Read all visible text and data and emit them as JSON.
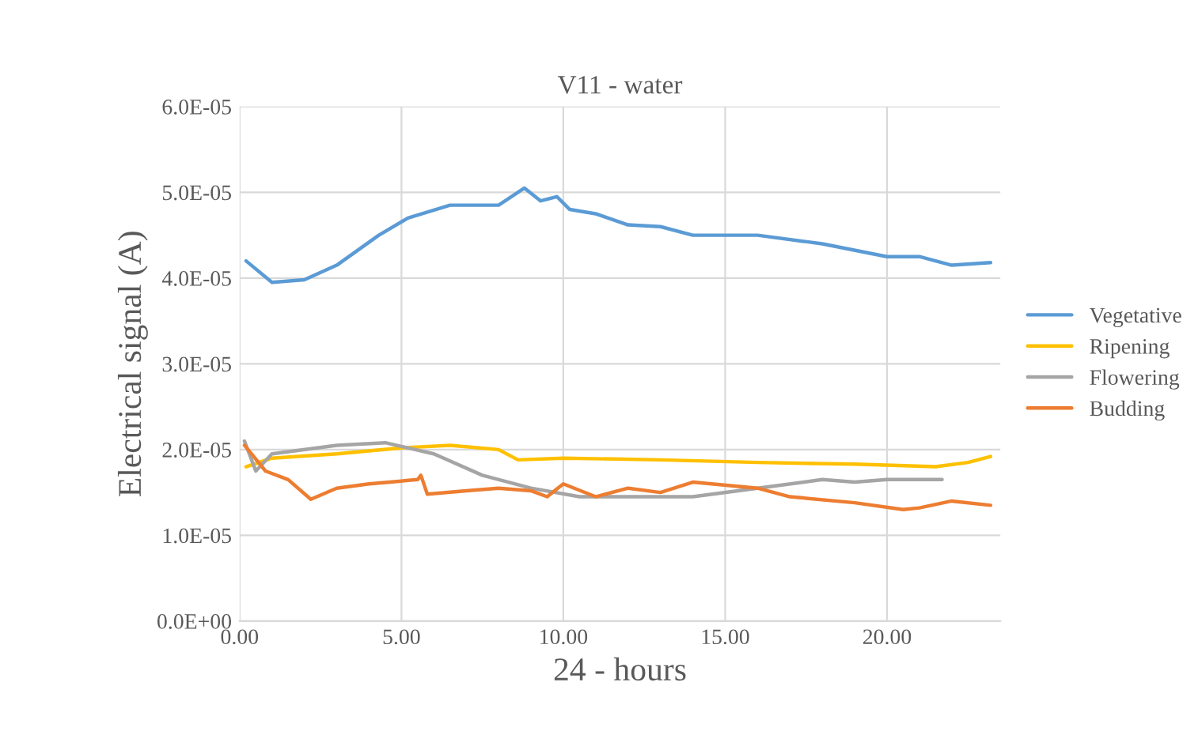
{
  "chart_data": {
    "type": "line",
    "title": "V11 - water",
    "xlabel": "24 - hours",
    "ylabel": "Electrical signal (A)",
    "xlim": [
      0,
      23.5
    ],
    "xticks": [
      {
        "value": 0,
        "label": "0.00"
      },
      {
        "value": 5,
        "label": "5.00"
      },
      {
        "value": 10,
        "label": "10.00"
      },
      {
        "value": 15,
        "label": "15.00"
      },
      {
        "value": 20,
        "label": "20.00"
      }
    ],
    "ylim": [
      0,
      6e-05
    ],
    "yticks": [
      {
        "value": 0,
        "label": "0.0E+00"
      },
      {
        "value": 1e-05,
        "label": "1.0E-05"
      },
      {
        "value": 2e-05,
        "label": "2.0E-05"
      },
      {
        "value": 3e-05,
        "label": "3.0E-05"
      },
      {
        "value": 4e-05,
        "label": "4.0E-05"
      },
      {
        "value": 5e-05,
        "label": "5.0E-05"
      },
      {
        "value": 6e-05,
        "label": "6.0E-05"
      }
    ],
    "grid": true,
    "legend": "right",
    "marker": "none",
    "line_style": "solid",
    "series": [
      {
        "name": "Vegetative",
        "color": "#5b9bd5",
        "x": [
          0.2,
          1,
          2,
          3,
          4.3,
          5.2,
          6.5,
          8,
          8.8,
          9.3,
          9.8,
          10.2,
          11,
          12,
          13,
          14,
          16,
          18,
          20,
          21,
          22,
          23.2
        ],
        "values": [
          4.2e-05,
          3.95e-05,
          3.98e-05,
          4.15e-05,
          4.5e-05,
          4.7e-05,
          4.85e-05,
          4.85e-05,
          5.05e-05,
          4.9e-05,
          4.95e-05,
          4.8e-05,
          4.75e-05,
          4.62e-05,
          4.6e-05,
          4.5e-05,
          4.5e-05,
          4.4e-05,
          4.25e-05,
          4.25e-05,
          4.15e-05,
          4.18e-05
        ]
      },
      {
        "name": "Ripening",
        "color": "#ffc000",
        "x": [
          0.2,
          1,
          3,
          5,
          6.5,
          8,
          8.6,
          10,
          13,
          16,
          19,
          21.5,
          22.5,
          23.2
        ],
        "values": [
          1.8e-05,
          1.9e-05,
          1.95e-05,
          2.02e-05,
          2.05e-05,
          2e-05,
          1.88e-05,
          1.9e-05,
          1.88e-05,
          1.85e-05,
          1.83e-05,
          1.8e-05,
          1.85e-05,
          1.92e-05
        ]
      },
      {
        "name": "Flowering",
        "color": "#a5a5a5",
        "x": [
          0.15,
          0.5,
          1,
          3,
          4.5,
          6,
          7.5,
          9,
          10.5,
          12,
          14,
          16,
          18,
          19,
          20,
          21.7
        ],
        "values": [
          2.1e-05,
          1.75e-05,
          1.95e-05,
          2.05e-05,
          2.08e-05,
          1.95e-05,
          1.7e-05,
          1.55e-05,
          1.45e-05,
          1.45e-05,
          1.45e-05,
          1.55e-05,
          1.65e-05,
          1.62e-05,
          1.65e-05,
          1.65e-05
        ]
      },
      {
        "name": "Budding",
        "color": "#ed7d31",
        "x": [
          0.15,
          0.8,
          1.5,
          2.2,
          3,
          4,
          5.5,
          5.6,
          5.8,
          7,
          8,
          9,
          9.5,
          10,
          11,
          12,
          13,
          14,
          16,
          17,
          19,
          20.5,
          21,
          22,
          23.2
        ],
        "values": [
          2.05e-05,
          1.75e-05,
          1.65e-05,
          1.42e-05,
          1.55e-05,
          1.6e-05,
          1.65e-05,
          1.7e-05,
          1.48e-05,
          1.52e-05,
          1.55e-05,
          1.52e-05,
          1.45e-05,
          1.6e-05,
          1.45e-05,
          1.55e-05,
          1.5e-05,
          1.62e-05,
          1.55e-05,
          1.45e-05,
          1.38e-05,
          1.3e-05,
          1.32e-05,
          1.4e-05,
          1.35e-05
        ]
      }
    ]
  }
}
